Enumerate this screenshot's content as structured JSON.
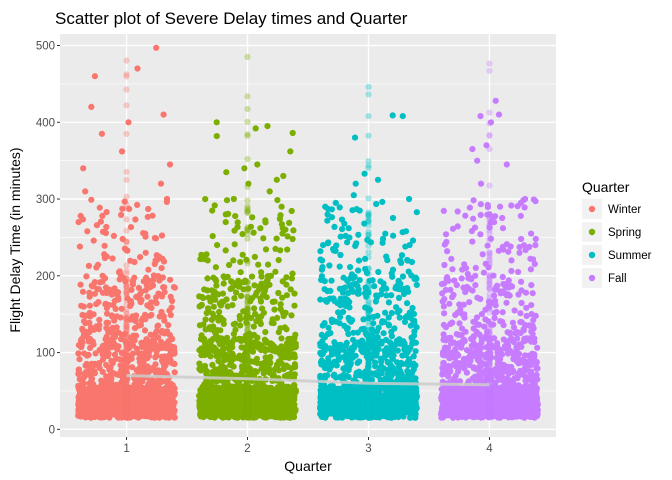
{
  "chart_data": {
    "type": "scatter",
    "title": "Scatter plot of Severe Delay times and Quarter",
    "xlabel": "Quarter",
    "ylabel": "Flight Delay Time (in minutes)",
    "x_ticks": [
      "1",
      "2",
      "3",
      "4"
    ],
    "y_ticks": [
      "0",
      "100",
      "200",
      "300",
      "400",
      "500"
    ],
    "xlim": [
      0.45,
      4.55
    ],
    "ylim": [
      -10,
      515
    ],
    "grid": true,
    "legend": {
      "title": "Quarter",
      "placement": "right",
      "entries": [
        {
          "label": "Winter",
          "color": "#F8766D"
        },
        {
          "label": "Spring",
          "color": "#7CAE00"
        },
        {
          "label": "Summer",
          "color": "#00BFC4"
        },
        {
          "label": "Fall",
          "color": "#C77CFF"
        }
      ]
    },
    "series": [
      {
        "name": "Winter",
        "quarter": 1,
        "color": "#F8766D",
        "jitter": 0.4,
        "mean": 70,
        "outliers": [
          497,
          470,
          460,
          420,
          410,
          400,
          385,
          362,
          345,
          340,
          320,
          310,
          300,
          287,
          270,
          255,
          252,
          248,
          238,
          235,
          230,
          225,
          222,
          218,
          210
        ]
      },
      {
        "name": "Spring",
        "quarter": 2,
        "color": "#7CAE00",
        "jitter": 0.4,
        "mean": 66,
        "outliers": [
          400,
          395,
          392,
          386,
          382,
          362,
          345,
          340,
          335,
          330,
          325,
          320,
          310,
          300,
          290,
          285,
          280,
          270,
          262,
          255,
          248,
          240,
          235,
          228,
          220
        ]
      },
      {
        "name": "Summer",
        "quarter": 3,
        "color": "#00BFC4",
        "jitter": 0.4,
        "mean": 60,
        "outliers": [
          409,
          408,
          380,
          333,
          325,
          320,
          305,
          300,
          295,
          290,
          285,
          268,
          262,
          258,
          252,
          248,
          240,
          238,
          232,
          225,
          222,
          218,
          212,
          208,
          205
        ]
      },
      {
        "name": "Fall",
        "quarter": 4,
        "color": "#C77CFF",
        "jitter": 0.4,
        "mean": 58,
        "outliers": [
          428,
          410,
          408,
          400,
          370,
          365,
          350,
          345,
          320,
          300,
          295,
          290,
          280,
          270,
          262,
          255,
          248,
          240,
          232,
          228,
          222,
          215,
          210,
          205,
          200
        ]
      }
    ]
  }
}
